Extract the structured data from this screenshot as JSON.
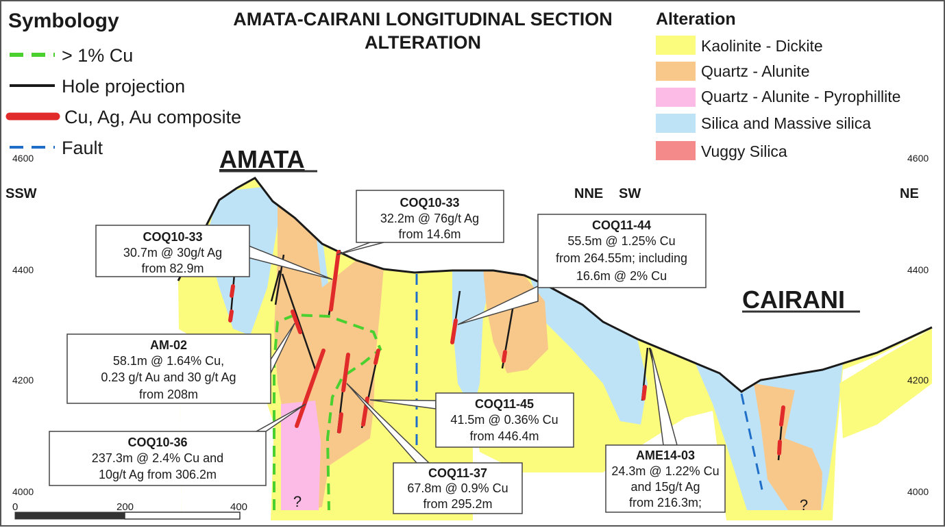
{
  "title": {
    "line1": "AMATA-CAIRANI LONGITUDINAL SECTION",
    "line2": "ALTERATION"
  },
  "symbology": {
    "heading": "Symbology",
    "items": [
      {
        "label": "> 1% Cu",
        "style": "green-dashed"
      },
      {
        "label": "Hole projection",
        "style": "black-line"
      },
      {
        "label": "Cu, Ag, Au composite",
        "style": "red-thick"
      },
      {
        "label": "Fault",
        "style": "blue-dashed"
      }
    ]
  },
  "alteration": {
    "heading": "Alteration",
    "items": [
      {
        "label": "Kaolinite - Dickite",
        "color": "#fbfb7e"
      },
      {
        "label": "Quartz - Alunite",
        "color": "#f8c88b"
      },
      {
        "label": "Quartz - Alunite - Pyrophillite",
        "color": "#fbbbe6"
      },
      {
        "label": "Silica and Massive silica",
        "color": "#bfe3f6"
      },
      {
        "label": "Vuggy Silica",
        "color": "#f58a8a"
      }
    ]
  },
  "locations": {
    "amata": "AMATA",
    "cairani": "CAIRANI"
  },
  "orientation": {
    "left": "SSW",
    "mid_left": "NNE",
    "mid_right": "SW",
    "right": "NE"
  },
  "elevations": {
    "e4600": "4600",
    "e4400": "4400",
    "e4200": "4200",
    "e4000": "4000"
  },
  "scale": {
    "t0": "0",
    "t200": "200",
    "t400": "400"
  },
  "unknown_marker": "?",
  "callouts": {
    "coq10_33_upper": {
      "title": "COQ10-33",
      "lines": [
        "32.2m @ 76g/t Ag",
        "from 14.6m"
      ]
    },
    "coq10_33_lower": {
      "title": "COQ10-33",
      "lines": [
        "30.7m @ 30g/t Ag",
        "from 82.9m"
      ]
    },
    "coq11_44": {
      "title": "COQ11-44",
      "lines": [
        "55.5m @ 1.25% Cu",
        "from 264.55m; including",
        "16.6m @ 2% Cu"
      ]
    },
    "am_02": {
      "title": "AM-02",
      "lines": [
        "58.1m @ 1.64% Cu,",
        "0.23 g/t Au and 30 g/t Ag",
        "from 208m"
      ]
    },
    "coq11_45": {
      "title": "COQ11-45",
      "lines": [
        "41.5m @ 0.36% Cu",
        "from 446.4m"
      ]
    },
    "coq10_36": {
      "title": "COQ10-36",
      "lines": [
        "237.3m @ 2.4% Cu and",
        "10g/t Ag from 306.2m"
      ]
    },
    "coq11_37": {
      "title": "COQ11-37",
      "lines": [
        "67.8m @ 0.9% Cu",
        "from 295.2m"
      ]
    },
    "ame14_03": {
      "title": "AME14-03",
      "lines": [
        "24.3m @ 1.22% Cu",
        "and 15g/t Ag",
        "from 216.3m;"
      ]
    }
  }
}
